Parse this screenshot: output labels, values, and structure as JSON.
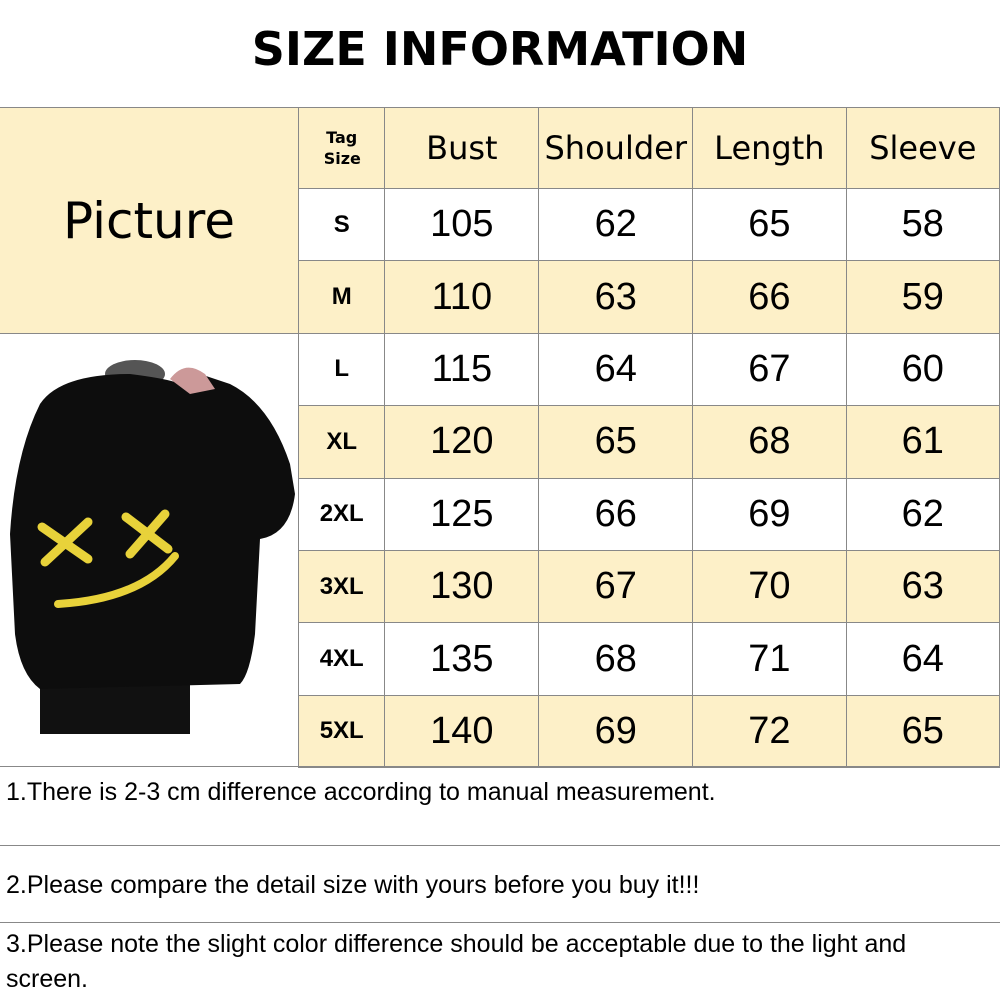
{
  "title": "SIZE INFORMATION",
  "picture_label": "Picture",
  "headers": {
    "tag": "Tag Size",
    "bust": "Bust",
    "shoulder": "Shoulder",
    "length": "Length",
    "sleeve": "Sleeve"
  },
  "rows": [
    {
      "size": "S",
      "bust": "105",
      "shoulder": "62",
      "length": "65",
      "sleeve": "58"
    },
    {
      "size": "M",
      "bust": "110",
      "shoulder": "63",
      "length": "66",
      "sleeve": "59"
    },
    {
      "size": "L",
      "bust": "115",
      "shoulder": "64",
      "length": "67",
      "sleeve": "60"
    },
    {
      "size": "XL",
      "bust": "120",
      "shoulder": "65",
      "length": "68",
      "sleeve": "61"
    },
    {
      "size": "2XL",
      "bust": "125",
      "shoulder": "66",
      "length": "69",
      "sleeve": "62"
    },
    {
      "size": "3XL",
      "bust": "130",
      "shoulder": "67",
      "length": "70",
      "sleeve": "63"
    },
    {
      "size": "4XL",
      "bust": "135",
      "shoulder": "68",
      "length": "71",
      "sleeve": "64"
    },
    {
      "size": "5XL",
      "bust": "140",
      "shoulder": "69",
      "length": "72",
      "sleeve": "65"
    }
  ],
  "notes": [
    "1.There is 2-3 cm difference according to manual measurement.",
    "2.Please compare the detail size with yours before you buy it!!!",
    "3.Please note the slight color difference should be acceptable due to the light and screen."
  ],
  "colors": {
    "cream": "#fdf0c8",
    "border": "#888888",
    "print": "#e8d23a"
  }
}
